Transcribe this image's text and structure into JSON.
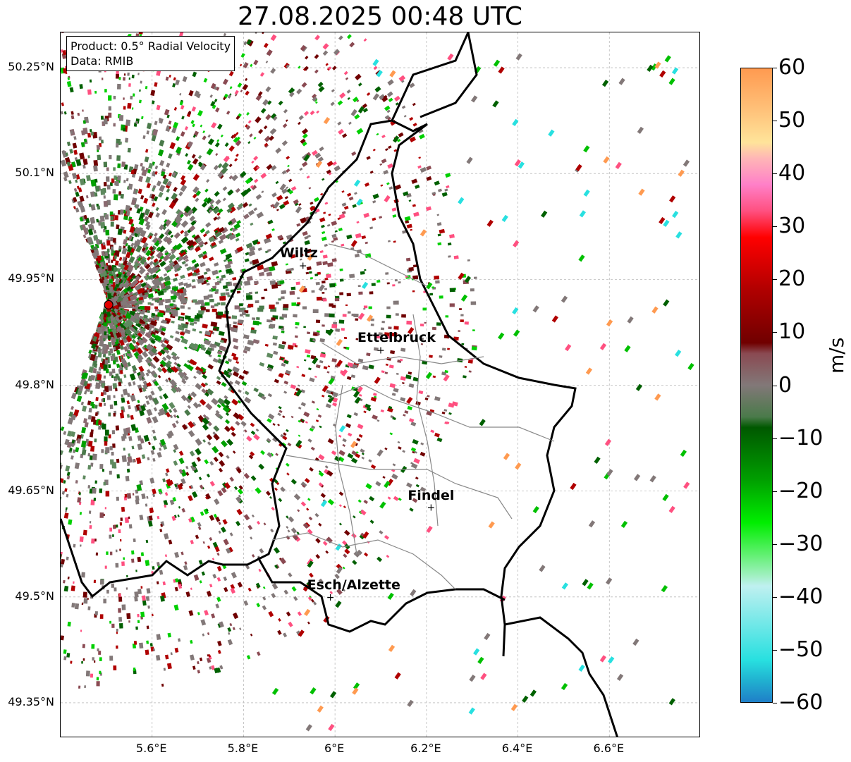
{
  "title": "27.08.2025 00:48 UTC",
  "infobox": {
    "product": "Product: 0.5° Radial Velocity",
    "source": "Data: RMIB"
  },
  "map": {
    "lon_range": [
      5.4,
      6.8
    ],
    "lat_range": [
      49.3,
      50.3
    ],
    "lat_ticks": [
      {
        "value": 50.25,
        "label": "50.25°N"
      },
      {
        "value": 50.1,
        "label": "50.1°N"
      },
      {
        "value": 49.95,
        "label": "49.95°N"
      },
      {
        "value": 49.8,
        "label": "49.8°N"
      },
      {
        "value": 49.65,
        "label": "49.65°N"
      },
      {
        "value": 49.5,
        "label": "49.5°N"
      },
      {
        "value": 49.35,
        "label": "49.35°N"
      }
    ],
    "lon_ticks": [
      {
        "value": 5.6,
        "label": "5.6°E"
      },
      {
        "value": 5.8,
        "label": "5.8°E"
      },
      {
        "value": 6.0,
        "label": "6°E"
      },
      {
        "value": 6.2,
        "label": "6.2°E"
      },
      {
        "value": 6.4,
        "label": "6.4°E"
      },
      {
        "value": 6.6,
        "label": "6.6°E"
      }
    ],
    "radar_site": {
      "lon": 5.505,
      "lat": 49.914,
      "color": "#e00000"
    },
    "cities": [
      {
        "name": "Wiltz",
        "lon": 5.93,
        "lat": 49.97
      },
      {
        "name": "Ettelbruck",
        "lon": 6.1,
        "lat": 49.85
      },
      {
        "name": "Findel",
        "lon": 6.21,
        "lat": 49.627
      },
      {
        "name": "Esch/Alzette",
        "lon": 5.99,
        "lat": 49.5
      }
    ]
  },
  "colorbar": {
    "unit": "m/s",
    "range": [
      -60,
      60
    ],
    "ticks": [
      "60",
      "50",
      "40",
      "30",
      "20",
      "10",
      "0",
      "−10",
      "−20",
      "−30",
      "−40",
      "−50",
      "−60"
    ],
    "stops": [
      {
        "value": 60,
        "color": "#ff9a50"
      },
      {
        "value": 52,
        "color": "#ffc27a"
      },
      {
        "value": 46,
        "color": "#ffe49a"
      },
      {
        "value": 43,
        "color": "#ffb6b6"
      },
      {
        "value": 38,
        "color": "#ff80c8"
      },
      {
        "value": 33,
        "color": "#ff5080"
      },
      {
        "value": 28,
        "color": "#ff0000"
      },
      {
        "value": 18,
        "color": "#b00000"
      },
      {
        "value": 8,
        "color": "#700000"
      },
      {
        "value": 6,
        "color": "#8a4a52"
      },
      {
        "value": 0,
        "color": "#827878"
      },
      {
        "value": -6,
        "color": "#4a7a4a"
      },
      {
        "value": -8,
        "color": "#005800"
      },
      {
        "value": -18,
        "color": "#00a000"
      },
      {
        "value": -26,
        "color": "#00ee00"
      },
      {
        "value": -32,
        "color": "#60f070"
      },
      {
        "value": -36,
        "color": "#a0f0c0"
      },
      {
        "value": -38,
        "color": "#bff0f0"
      },
      {
        "value": -52,
        "color": "#28e0e0"
      },
      {
        "value": -56,
        "color": "#20b0d0"
      },
      {
        "value": -60,
        "color": "#1f7fc8"
      }
    ]
  }
}
